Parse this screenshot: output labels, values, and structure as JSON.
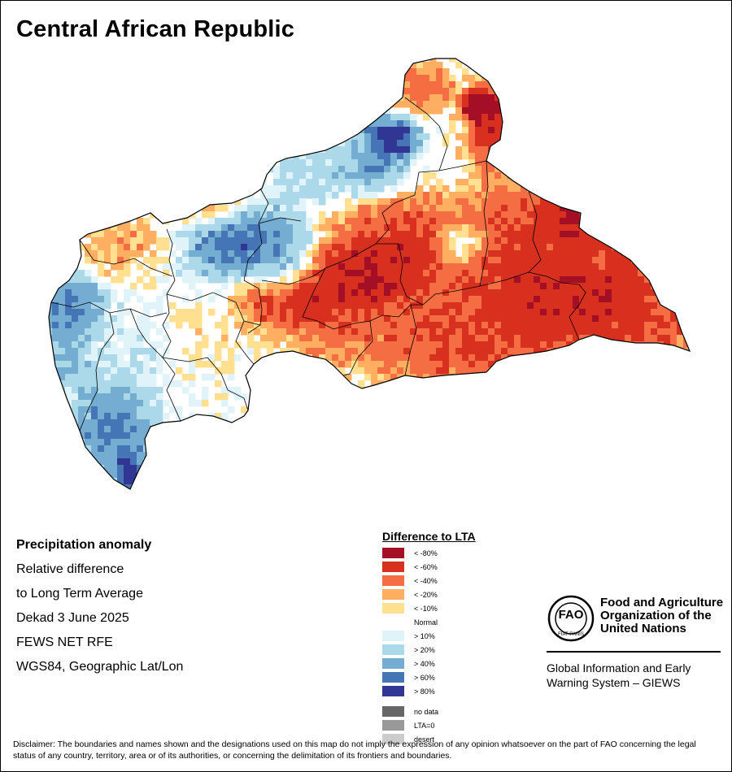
{
  "title": "Central African Republic",
  "map_info": {
    "heading": "Precipitation anomaly",
    "line1": "Relative difference",
    "line2": "to Long Term Average",
    "period": "Dekad 3 June 2025",
    "source": "FEWS NET RFE",
    "projection": "WGS84, Geographic Lat/Lon"
  },
  "legend": {
    "title": "Difference to LTA",
    "dry": [
      {
        "label": "< -80%",
        "color": "#a50f26"
      },
      {
        "label": "< -60%",
        "color": "#d7301f"
      },
      {
        "label": "< -40%",
        "color": "#f46d43"
      },
      {
        "label": "< -20%",
        "color": "#fdae61"
      },
      {
        "label": "< -10%",
        "color": "#fee090"
      }
    ],
    "normal": {
      "label": "Normal",
      "color": "#ffffff"
    },
    "wet": [
      {
        "label": "> 10%",
        "color": "#e0f3f8"
      },
      {
        "label": "> 20%",
        "color": "#abd9e9"
      },
      {
        "label": "> 40%",
        "color": "#74add1"
      },
      {
        "label": "> 60%",
        "color": "#4575b4"
      },
      {
        "label": "> 80%",
        "color": "#313695"
      }
    ],
    "other": [
      {
        "label": "no data",
        "color": "#666666"
      },
      {
        "label": "LTA=0",
        "color": "#999999"
      },
      {
        "label": "desert",
        "color": "#cccccc"
      }
    ]
  },
  "org": {
    "logo_text": "FAO",
    "logo_motto": "FIAT PANIS",
    "line1": "Food and Agriculture",
    "line2": "Organization of the",
    "line3": "United Nations",
    "giews1": "Global Information and Early",
    "giews2": "Warning System – GIEWS"
  },
  "disclaimer": "Disclaimer: The boundaries and names shown and the designations used on this map do not imply the expression of any opinion whatsoever on the part of FAO concerning the legal status of any country, territory, area or of its authorities, or concerning the delimitation of its frontiers and boundaries."
}
